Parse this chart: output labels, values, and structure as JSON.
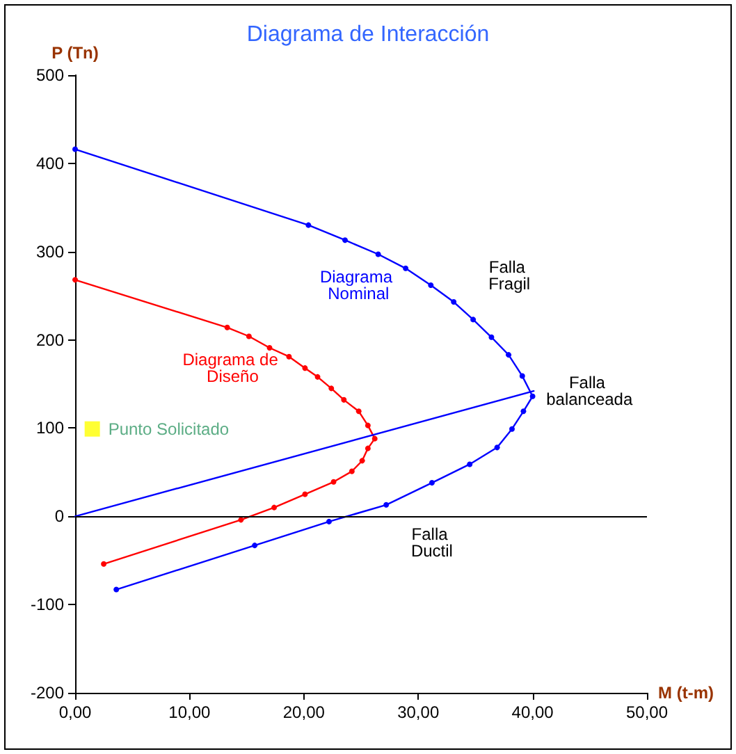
{
  "chart_data": {
    "type": "line",
    "title": "Diagrama de Interacción",
    "xlabel": "M (t-m)",
    "ylabel": "P (Tn)",
    "xlim": [
      0,
      50
    ],
    "xticks": [
      {
        "value": 0,
        "label": "0,00"
      },
      {
        "value": 10,
        "label": "10,00"
      },
      {
        "value": 20,
        "label": "20,00"
      },
      {
        "value": 30,
        "label": "30,00"
      },
      {
        "value": 40,
        "label": "40,00"
      },
      {
        "value": 50,
        "label": "50,00"
      }
    ],
    "ylim": [
      -200,
      500
    ],
    "yticks": [
      -200,
      -100,
      0,
      100,
      200,
      300,
      400,
      500
    ],
    "ref_lines": [
      {
        "axis": "y",
        "value": 0,
        "color": "#000000"
      }
    ],
    "grid": false,
    "legend": false,
    "marker": "circle",
    "line_style": "solid",
    "series": [
      {
        "name": "Diagrama Nominal",
        "color": "#0000ff",
        "x": [
          0,
          20.4,
          23.6,
          26.5,
          28.9,
          31.1,
          33.1,
          34.8,
          36.4,
          37.9,
          39.1,
          40.0,
          39.2,
          38.2,
          36.9,
          34.5,
          31.2,
          27.2,
          22.2,
          15.7,
          3.6
        ],
        "values": [
          416,
          330,
          313,
          297,
          281,
          262,
          243,
          223,
          203,
          183,
          159,
          136,
          119,
          99,
          78,
          59,
          38,
          13,
          -6,
          -33,
          -83
        ]
      },
      {
        "name": "Diagrama de Diseño",
        "color": "#ff0000",
        "x": [
          0,
          13.3,
          15.2,
          17.0,
          18.7,
          20.1,
          21.2,
          22.4,
          23.5,
          24.8,
          25.6,
          26.2,
          25.6,
          25.1,
          24.2,
          22.6,
          20.1,
          17.4,
          14.5,
          2.5
        ],
        "values": [
          268,
          214,
          204,
          191,
          181,
          168,
          158,
          145,
          132,
          119,
          103,
          88,
          77,
          63,
          51,
          39,
          25,
          10,
          -4,
          -54
        ]
      },
      {
        "color": "#0000ff",
        "marker": "none",
        "x": [
          0,
          40.1
        ],
        "values": [
          0,
          142
        ]
      },
      {
        "type": "scatter",
        "name": "Punto Solicitado",
        "color": "#ffff00",
        "marker": "square",
        "x": [
          1.5
        ],
        "values": [
          99
        ]
      }
    ],
    "annotations": [
      {
        "text": "Falla Fragil",
        "x": 33.1,
        "y": 243
      },
      {
        "text": "Falla balanceada",
        "x": 40.1,
        "y": 142
      },
      {
        "text": "Falla Ductil",
        "x": 31.2,
        "y": 38
      }
    ]
  }
}
